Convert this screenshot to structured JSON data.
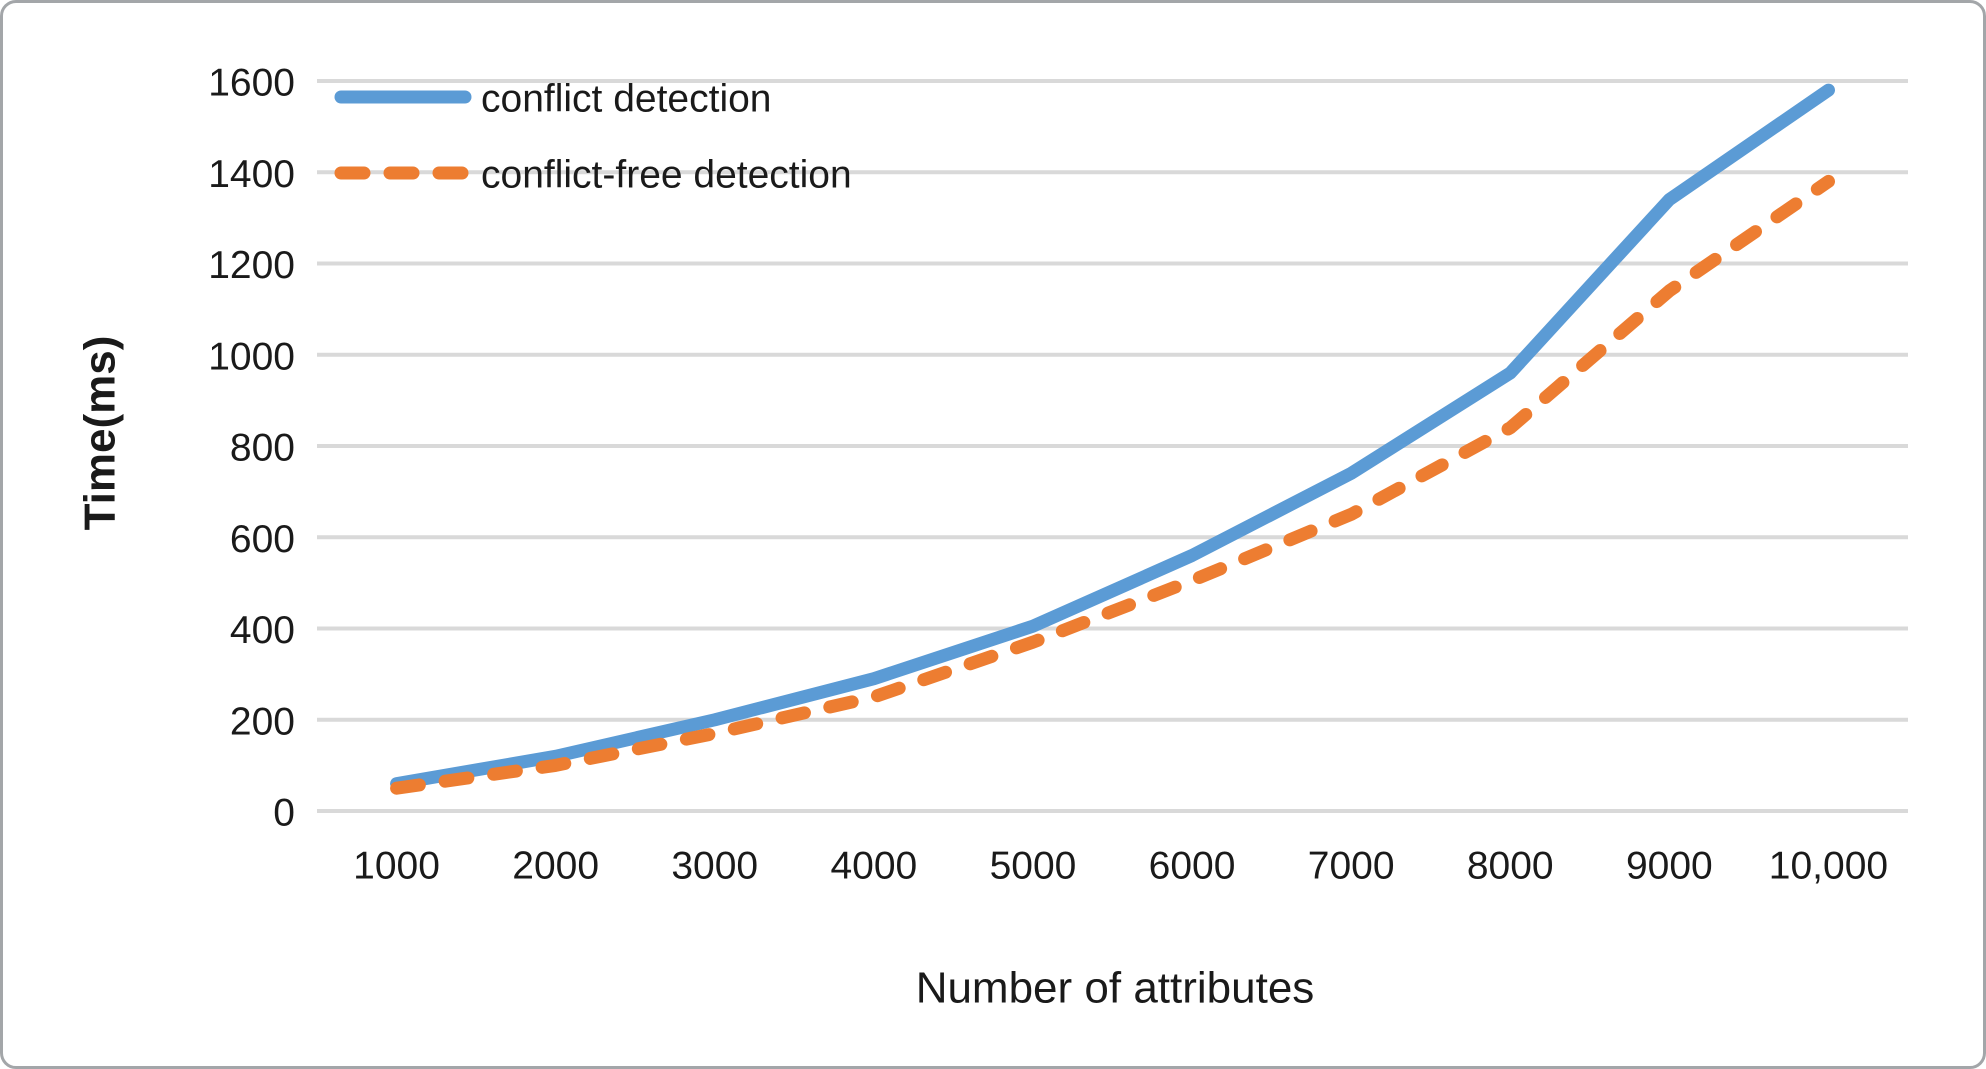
{
  "chart_data": {
    "type": "line",
    "title": "",
    "xlabel": "Number of attributes",
    "ylabel": "Time(ms)",
    "categories": [
      "1000",
      "2000",
      "3000",
      "4000",
      "5000",
      "6000",
      "7000",
      "8000",
      "9000",
      "10,000"
    ],
    "x_values": [
      1000,
      2000,
      3000,
      4000,
      5000,
      6000,
      7000,
      8000,
      9000,
      10000
    ],
    "series": [
      {
        "name": "conflict detection",
        "style": "solid",
        "color": "#5B9BD5",
        "values": [
          60,
          120,
          200,
          290,
          405,
          560,
          740,
          960,
          1340,
          1580
        ]
      },
      {
        "name": "conflict-free detection",
        "style": "dashed",
        "color": "#ED7D31",
        "values": [
          50,
          100,
          170,
          250,
          370,
          505,
          650,
          840,
          1140,
          1380
        ]
      }
    ],
    "yticks": [
      0,
      200,
      400,
      600,
      800,
      1000,
      1200,
      1400,
      1600
    ],
    "ylim": [
      0,
      1600
    ],
    "grid": "horizontal",
    "grid_color": "#D9D9D9",
    "text_color": "#1a1a1a",
    "legend_position": "top-left-inside"
  }
}
